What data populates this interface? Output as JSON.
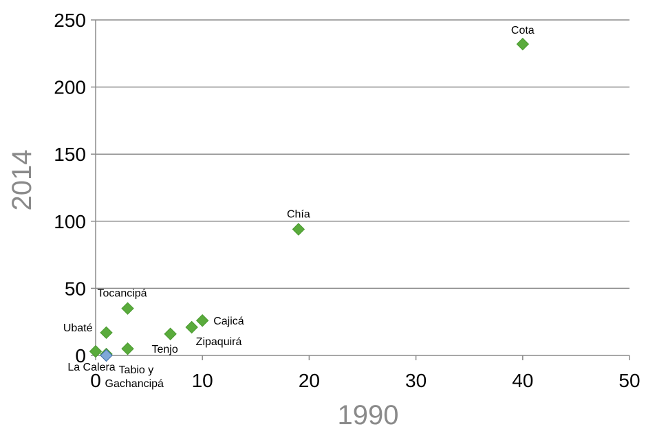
{
  "chart_data": {
    "type": "scatter",
    "title": "",
    "xlabel": "1990",
    "ylabel": "2014",
    "xlim": [
      0,
      50
    ],
    "ylim": [
      0,
      250
    ],
    "xticks": [
      0,
      10,
      20,
      30,
      40,
      50
    ],
    "yticks": [
      0,
      50,
      100,
      150,
      200,
      250
    ],
    "grid": "horizontal",
    "colors": {
      "marker": "#5aab3c",
      "marker_edge": "#4a9a30",
      "highlight": "#7fa8d8",
      "grid": "#8c8c8c",
      "axis": "#8c8c8c"
    },
    "points": [
      {
        "label": "Cota",
        "x": 40,
        "y": 232
      },
      {
        "label": "Chía",
        "x": 19,
        "y": 94
      },
      {
        "label": "Tocancipá",
        "x": 3,
        "y": 35
      },
      {
        "label": "Cajicá",
        "x": 10,
        "y": 26
      },
      {
        "label": "Zipaquirá",
        "x": 9,
        "y": 21
      },
      {
        "label": "Tenjo",
        "x": 7,
        "y": 16
      },
      {
        "label": "Ubaté",
        "x": 1,
        "y": 17
      },
      {
        "label": "Tabio y Gachancipá",
        "x": 3,
        "y": 5
      },
      {
        "label": "La Calera",
        "x": 0,
        "y": 3
      },
      {
        "label": "",
        "x": 1,
        "y": 1
      },
      {
        "label": "",
        "x": 1,
        "y": 0
      }
    ]
  }
}
